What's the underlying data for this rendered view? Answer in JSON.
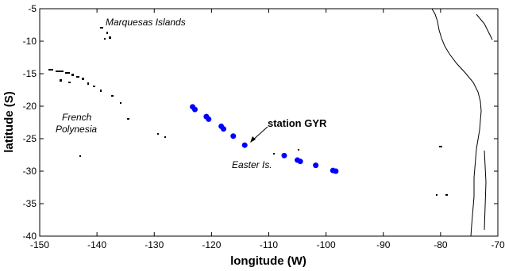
{
  "chart_data": {
    "type": "scatter",
    "xlabel": "longitude (W)",
    "ylabel": "latitude (S)",
    "xlim": [
      -150,
      -70
    ],
    "ylim": [
      -40,
      -5
    ],
    "xticks": [
      "-150",
      "-140",
      "-130",
      "-120",
      "-110",
      "-100",
      "-90",
      "-80",
      "-70"
    ],
    "yticks": [
      "-5",
      "-10",
      "-15",
      "-20",
      "-25",
      "-30",
      "-35",
      "-40"
    ],
    "series": [
      {
        "color": "#0000ff",
        "x": [
          -123.3,
          -122.9,
          -120.9,
          -120.5,
          -118.3,
          -117.9,
          -116.2,
          -114.2,
          -107.3,
          -105.0,
          -104.5,
          -101.8,
          -98.8,
          -98.3
        ],
        "y": [
          -20.1,
          -20.5,
          -21.6,
          -22.0,
          -23.1,
          -23.5,
          -24.6,
          -26.0,
          -27.6,
          -28.3,
          -28.5,
          -29.1,
          -29.9,
          -30.0
        ]
      }
    ],
    "annotations": {
      "marquesas": "Marquesas Islands",
      "french_polynesia_line1": "French",
      "french_polynesia_line2": "Polynesia",
      "station": "station GYR",
      "easter": "Easter Is."
    }
  },
  "colors": {
    "coast": "#000000",
    "marker": "#0000ff"
  }
}
